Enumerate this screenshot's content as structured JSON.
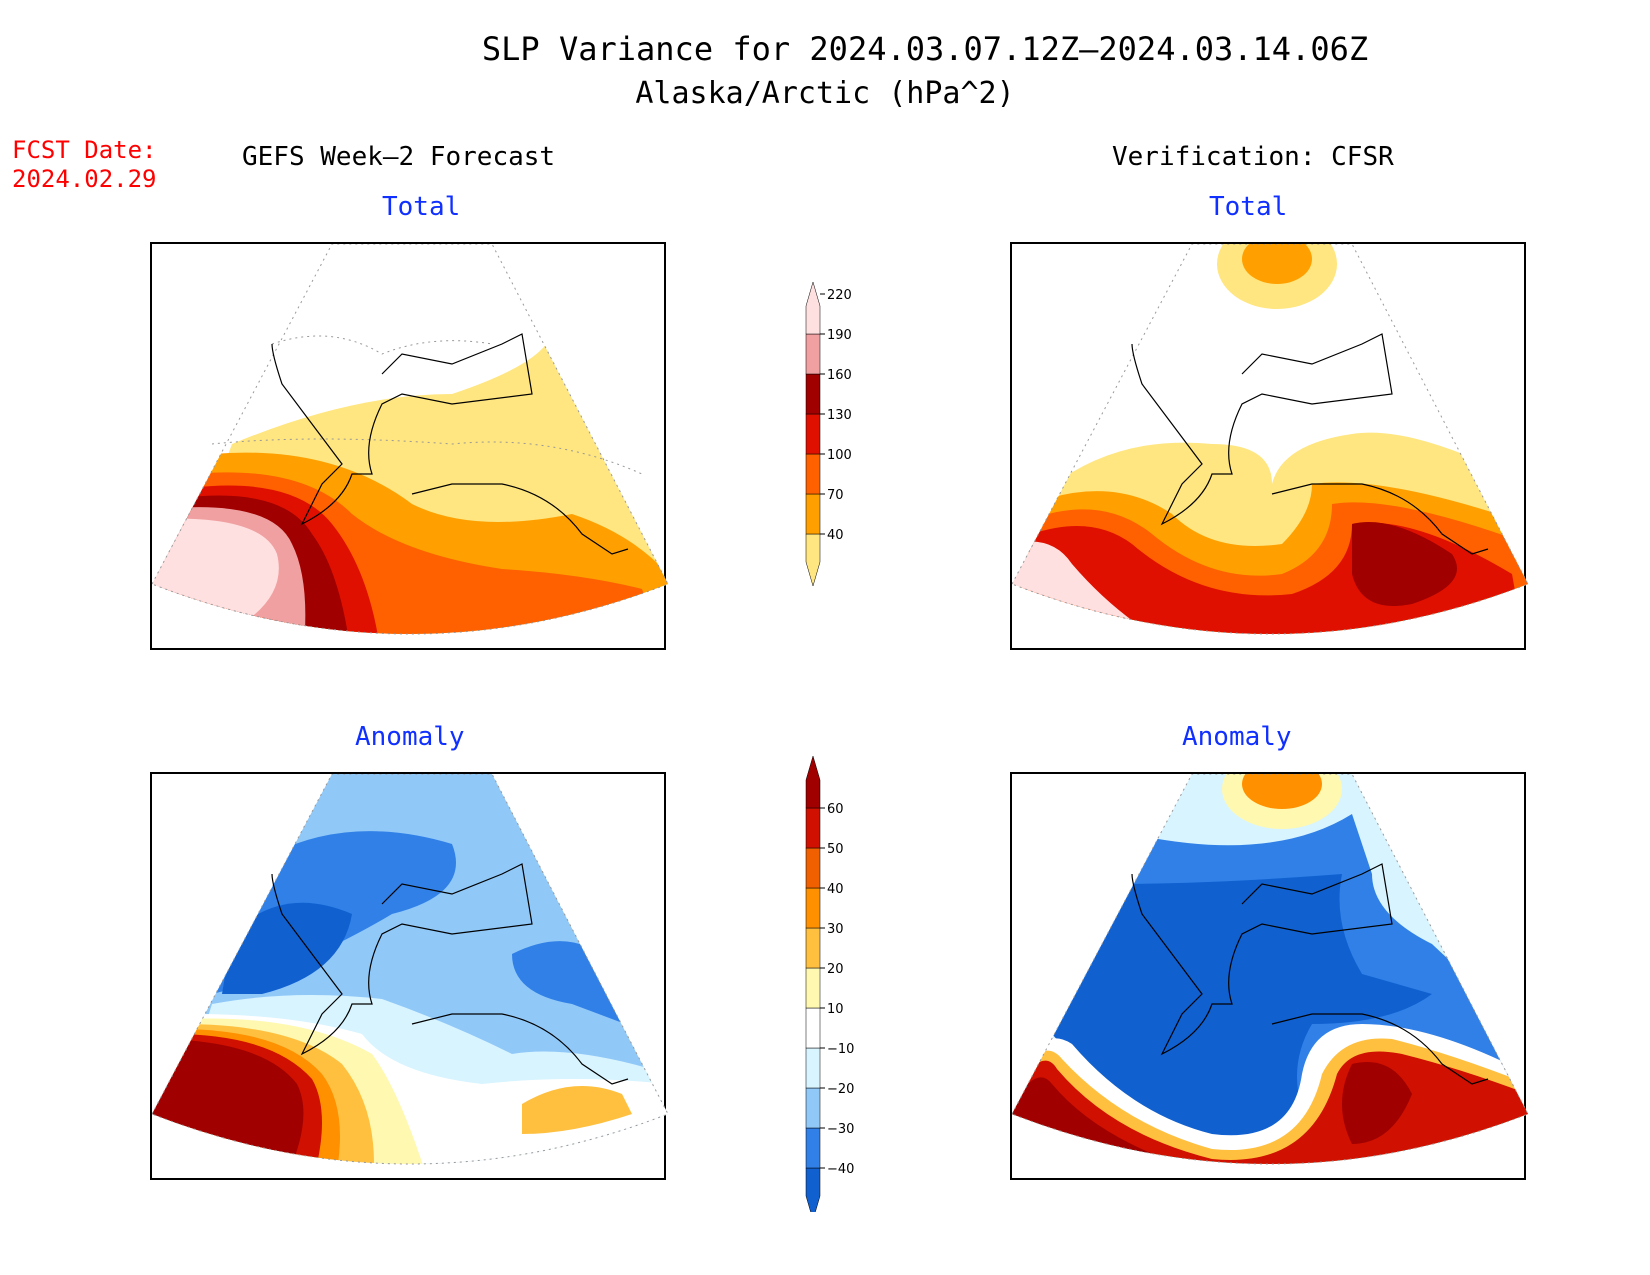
{
  "title": {
    "line1": "SLP Variance for 2024.03.07.12Z–2024.03.14.06Z",
    "line2": "Alaska/Arctic (hPa^2)"
  },
  "fcst": {
    "label": "FCST Date:",
    "date": "2024.02.29"
  },
  "columns": {
    "left": "GEFS Week–2 Forecast",
    "right": "Verification: CFSR"
  },
  "panels": {
    "top_left": "Total",
    "top_right": "Total",
    "bottom_left": "Anomaly",
    "bottom_right": "Anomaly"
  },
  "colorbar_total": {
    "levels": [
      "40",
      "70",
      "100",
      "130",
      "160",
      "190",
      "220"
    ],
    "colors": [
      "#ffe680",
      "#ffa000",
      "#ff6000",
      "#e01000",
      "#a00000",
      "#f0a0a0",
      "#ffe0e0"
    ]
  },
  "colorbar_anomaly": {
    "levels": [
      "−40",
      "−30",
      "−20",
      "−10",
      "10",
      "20",
      "30",
      "40",
      "50",
      "60"
    ],
    "colors": [
      "#1060d0",
      "#3080e8",
      "#90c8f8",
      "#d8f4ff",
      "#ffffff",
      "#fff8b0",
      "#ffc040",
      "#ff9000",
      "#f06000",
      "#d01000",
      "#a00000"
    ]
  }
}
